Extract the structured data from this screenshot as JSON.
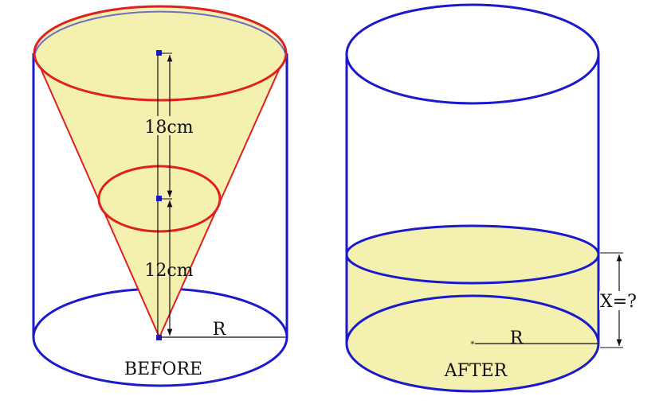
{
  "before": {
    "upper_height_label": "18cm",
    "lower_height_label": "12cm",
    "radius_label": "R",
    "caption": "BEFORE"
  },
  "after": {
    "radius_label": "R",
    "water_height_label": "X=?",
    "caption": "AFTER"
  },
  "colors": {
    "cylinder": "#1a1acc",
    "cone": "#e02020",
    "liquid": "#f3f0b0",
    "dimension": "#111111"
  }
}
